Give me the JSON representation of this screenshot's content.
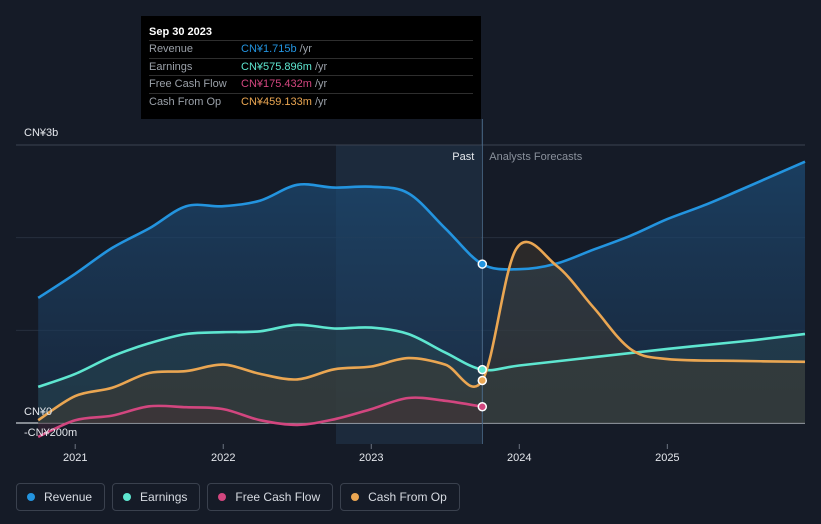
{
  "tooltip": {
    "date": "Sep 30 2023",
    "rows": [
      {
        "label": "Revenue",
        "value": "CN¥1.715b",
        "unit": "/yr",
        "color": "#2394df"
      },
      {
        "label": "Earnings",
        "value": "CN¥575.896m",
        "unit": "/yr",
        "color": "#5ee6d0"
      },
      {
        "label": "Free Cash Flow",
        "value": "CN¥175.432m",
        "unit": "/yr",
        "color": "#d2467f"
      },
      {
        "label": "Cash From Op",
        "value": "CN¥459.133m",
        "unit": "/yr",
        "color": "#eaa652"
      }
    ]
  },
  "legend": [
    {
      "label": "Revenue",
      "color": "#2394df"
    },
    {
      "label": "Earnings",
      "color": "#5ee6d0"
    },
    {
      "label": "Free Cash Flow",
      "color": "#d2467f"
    },
    {
      "label": "Cash From Op",
      "color": "#eaa652"
    }
  ],
  "labels": {
    "past": "Past",
    "forecast": "Analysts Forecasts",
    "y_top": "CN¥3b",
    "y_zero": "CN¥0",
    "y_bottom": "-CN¥200m"
  },
  "chart_data": {
    "type": "area",
    "x_ticks": [
      "2021",
      "2022",
      "2023",
      "2024",
      "2025"
    ],
    "x_tick_values": [
      2021.0,
      2022.0,
      2023.0,
      2024.0,
      2025.0
    ],
    "xlim": [
      2020.6,
      2025.93
    ],
    "ylim": [
      -200,
      3000
    ],
    "y_unit": "CN¥m",
    "past_end": 2023.75,
    "highlight_start": 2022.75,
    "series": [
      {
        "name": "Revenue",
        "color": "#2394df",
        "points": [
          [
            2020.75,
            1350
          ],
          [
            2021.0,
            1610
          ],
          [
            2021.25,
            1890
          ],
          [
            2021.5,
            2100
          ],
          [
            2021.75,
            2340
          ],
          [
            2022.0,
            2340
          ],
          [
            2022.25,
            2400
          ],
          [
            2022.5,
            2570
          ],
          [
            2022.75,
            2540
          ],
          [
            2023.0,
            2550
          ],
          [
            2023.25,
            2480
          ],
          [
            2023.5,
            2100
          ],
          [
            2023.75,
            1715
          ],
          [
            2024.0,
            1660
          ],
          [
            2024.25,
            1720
          ],
          [
            2024.5,
            1870
          ],
          [
            2024.75,
            2020
          ],
          [
            2025.0,
            2200
          ],
          [
            2025.25,
            2350
          ],
          [
            2025.5,
            2520
          ],
          [
            2025.93,
            2820
          ]
        ]
      },
      {
        "name": "Earnings",
        "color": "#5ee6d0",
        "points": [
          [
            2020.75,
            390
          ],
          [
            2021.0,
            530
          ],
          [
            2021.25,
            720
          ],
          [
            2021.5,
            860
          ],
          [
            2021.75,
            960
          ],
          [
            2022.0,
            980
          ],
          [
            2022.25,
            990
          ],
          [
            2022.5,
            1060
          ],
          [
            2022.75,
            1020
          ],
          [
            2023.0,
            1030
          ],
          [
            2023.25,
            960
          ],
          [
            2023.5,
            760
          ],
          [
            2023.75,
            575.9
          ],
          [
            2024.0,
            620
          ],
          [
            2024.5,
            710
          ],
          [
            2025.0,
            800
          ],
          [
            2025.5,
            880
          ],
          [
            2025.93,
            960
          ]
        ]
      },
      {
        "name": "Free Cash Flow",
        "color": "#d2467f",
        "points": [
          [
            2020.75,
            -150
          ],
          [
            2021.0,
            30
          ],
          [
            2021.25,
            80
          ],
          [
            2021.5,
            180
          ],
          [
            2021.75,
            170
          ],
          [
            2022.0,
            150
          ],
          [
            2022.25,
            30
          ],
          [
            2022.5,
            -20
          ],
          [
            2022.75,
            40
          ],
          [
            2023.0,
            150
          ],
          [
            2023.25,
            270
          ],
          [
            2023.5,
            240
          ],
          [
            2023.75,
            175.4
          ]
        ]
      },
      {
        "name": "Cash From Op",
        "color": "#eaa652",
        "points": [
          [
            2020.75,
            30
          ],
          [
            2021.0,
            290
          ],
          [
            2021.25,
            380
          ],
          [
            2021.5,
            540
          ],
          [
            2021.75,
            560
          ],
          [
            2022.0,
            630
          ],
          [
            2022.25,
            530
          ],
          [
            2022.5,
            470
          ],
          [
            2022.75,
            580
          ],
          [
            2023.0,
            610
          ],
          [
            2023.25,
            700
          ],
          [
            2023.5,
            630
          ],
          [
            2023.75,
            459.1
          ],
          [
            2023.98,
            1880
          ],
          [
            2024.25,
            1700
          ],
          [
            2024.5,
            1250
          ],
          [
            2024.75,
            800
          ],
          [
            2025.0,
            690
          ],
          [
            2025.5,
            670
          ],
          [
            2025.93,
            660
          ]
        ]
      }
    ]
  }
}
